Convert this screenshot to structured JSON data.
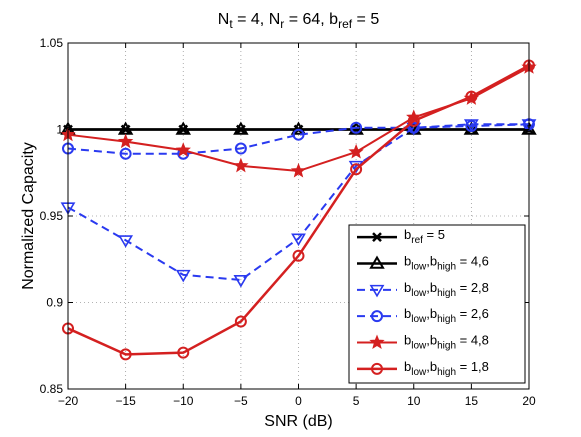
{
  "chart_data": {
    "type": "line",
    "title_parts": [
      {
        "t": "N",
        "s": "t",
        "r": " = 4, "
      },
      {
        "t": "N",
        "s": "r",
        "r": " = 64, "
      },
      {
        "t": "b",
        "s": "ref",
        "r": " = 5"
      }
    ],
    "xlabel": "SNR (dB)",
    "ylabel": "Normalized Capacity",
    "xlim": [
      -20,
      20
    ],
    "ylim": [
      0.85,
      1.05
    ],
    "xticks": [
      -20,
      -15,
      -10,
      -5,
      0,
      5,
      10,
      15,
      20
    ],
    "yticks": [
      0.85,
      0.9,
      0.95,
      1,
      1.05
    ],
    "ytick_labels": [
      "0.85",
      "0.9",
      "0.95",
      "1",
      "1.05"
    ],
    "grid": true,
    "legend_position": "lower-right",
    "x": [
      -20,
      -15,
      -10,
      -5,
      0,
      5,
      10,
      15,
      20
    ],
    "series": [
      {
        "legend": {
          "b": "b",
          "s1": "ref",
          "rest": " = 5"
        },
        "values": [
          1.0,
          1.0,
          1.0,
          1.0,
          1.0,
          1.0,
          1.0,
          1.0,
          1.0
        ],
        "color": "#000000",
        "dash": false,
        "marker": "x",
        "lw": 2.5
      },
      {
        "legend": {
          "b": "b",
          "s1": "low",
          "mid": ",b",
          "s2": "high",
          "rest": " = 4,6"
        },
        "values": [
          1.0,
          1.0,
          1.0,
          1.0,
          1.0,
          1.0,
          1.0,
          1.0,
          1.0
        ],
        "color": "#000000",
        "dash": false,
        "marker": "triangle-up",
        "lw": 2.5
      },
      {
        "legend": {
          "b": "b",
          "s1": "low",
          "mid": ",b",
          "s2": "high",
          "rest": " = 2,8"
        },
        "values": [
          0.955,
          0.936,
          0.916,
          0.913,
          0.937,
          0.979,
          1.001,
          1.003,
          1.003
        ],
        "color": "#2a3af0",
        "dash": true,
        "marker": "triangle-down",
        "lw": 2
      },
      {
        "legend": {
          "b": "b",
          "s1": "low",
          "mid": ",b",
          "s2": "high",
          "rest": " = 2,6"
        },
        "values": [
          0.989,
          0.986,
          0.986,
          0.989,
          0.997,
          1.001,
          1.001,
          1.002,
          1.003
        ],
        "color": "#2a3af0",
        "dash": true,
        "marker": "circle",
        "lw": 2
      },
      {
        "legend": {
          "b": "b",
          "s1": "low",
          "mid": ",b",
          "s2": "high",
          "rest": " = 4,8"
        },
        "values": [
          0.997,
          0.993,
          0.988,
          0.979,
          0.976,
          0.987,
          1.007,
          1.018,
          1.036
        ],
        "color": "#d42020",
        "dash": false,
        "marker": "star",
        "lw": 2
      },
      {
        "legend": {
          "b": "b",
          "s1": "low",
          "mid": ",b",
          "s2": "high",
          "rest": " = 1,8"
        },
        "values": [
          0.885,
          0.87,
          0.871,
          0.889,
          0.927,
          0.977,
          1.005,
          1.019,
          1.037
        ],
        "color": "#d42020",
        "dash": false,
        "marker": "circle",
        "lw": 2.5
      }
    ]
  }
}
